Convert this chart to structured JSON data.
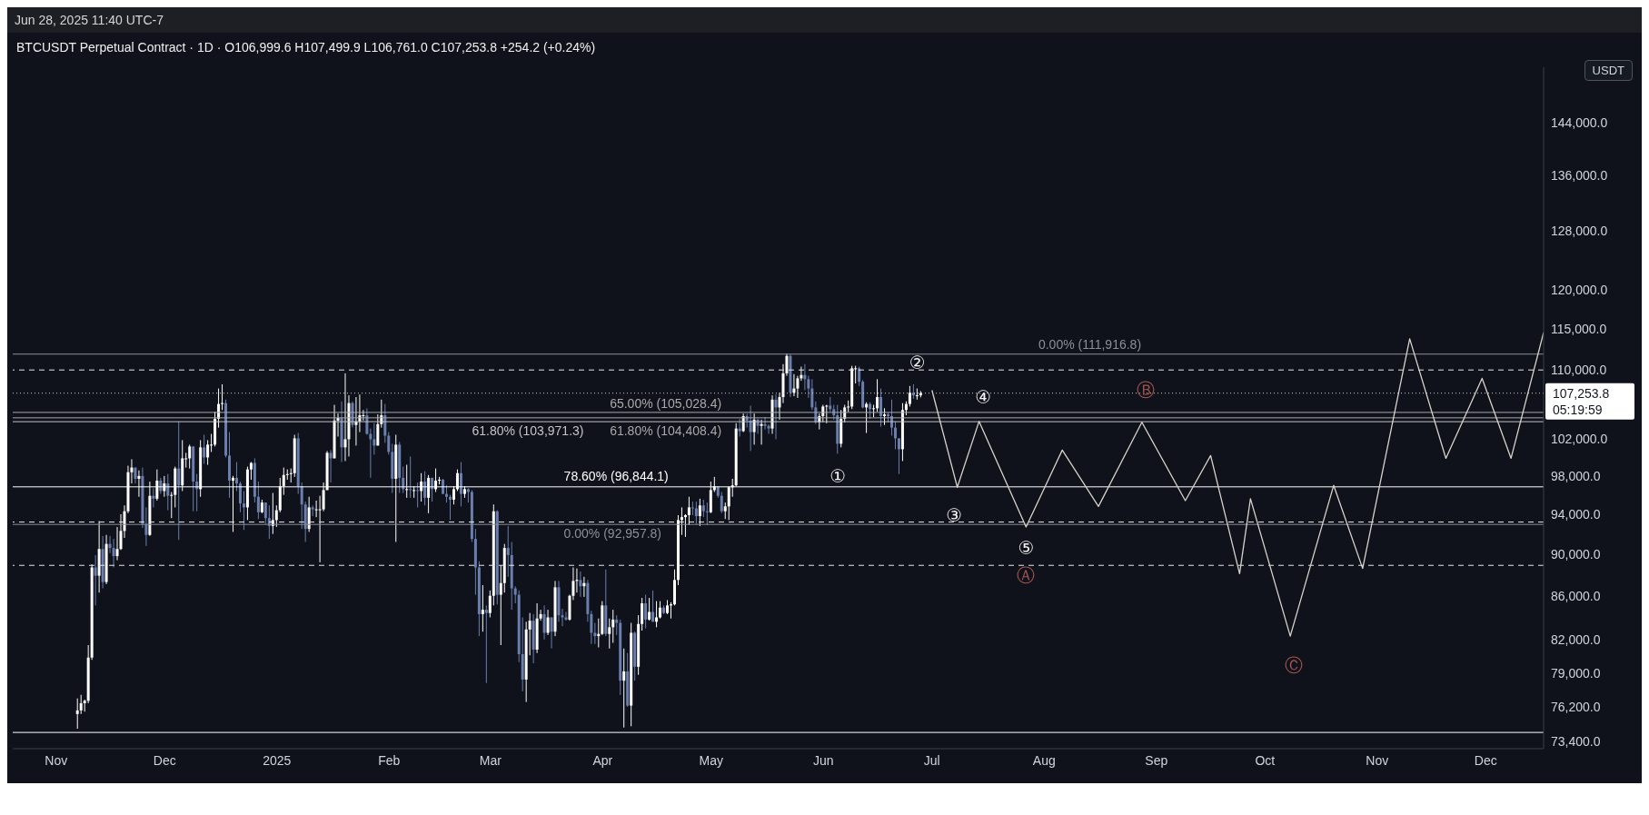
{
  "chart_data": {
    "type": "candlestick",
    "title": "BTCUSDT Perpetual Contract · 1D · O106,999.6 H107,499.9 L106,761.0 C107,253.8 +254.2 (+0.24%)",
    "subtitle": "Jun 28, 2025 11:40 UTC-7",
    "ylabel": "USDT",
    "log": true,
    "colors": [
      "#ffffff",
      "#ffffff",
      "#ffffff",
      "#ffffff",
      "#ffffff",
      "#6a7fae",
      "#ffffff",
      "#6a7fae",
      "#ffffff",
      "#6a7fae",
      "#6a7fae",
      "#ffffff",
      "#ffffff",
      "#ffffff",
      "#ffffff",
      "#ffffff",
      "#6a7fae",
      "#ffffff",
      "#6a7fae",
      "#6a7fae",
      "#ffffff",
      "#6a7fae",
      "#ffffff",
      "#6a7fae",
      "#ffffff",
      "#6a7fae",
      "#ffffff",
      "#ffffff",
      "#6a7fae",
      "#ffffff",
      "#ffffff",
      "#ffffff",
      "#6a7fae",
      "#6a7fae",
      "#ffffff",
      "#6a7fae",
      "#ffffff",
      "#ffffff",
      "#ffffff",
      "#ffffff",
      "#ffffff",
      "#6a7fae",
      "#6a7fae",
      "#ffffff",
      "#6a7fae",
      "#6a7fae",
      "#6a7fae",
      "#ffffff",
      "#ffffff",
      "#6a7fae",
      "#6a7fae",
      "#ffffff",
      "#6a7fae",
      "#6a7fae",
      "#ffffff",
      "#ffffff",
      "#ffffff",
      "#ffffff",
      "#ffffff",
      "#ffffff",
      "#ffffff",
      "#6a7fae",
      "#6a7fae",
      "#6a7fae",
      "#ffffff",
      "#6a7fae",
      "#ffffff",
      "#ffffff",
      "#ffffff",
      "#ffffff",
      "#6a7fae",
      "#ffffff",
      "#ffffff",
      "#6a7fae",
      "#ffffff",
      "#ffffff",
      "#6a7fae",
      "#ffffff",
      "#ffffff",
      "#ffffff",
      "#6a7fae",
      "#6a7fae",
      "#6a7fae",
      "#ffffff",
      "#ffffff",
      "#6a7fae",
      "#6a7fae",
      "#6a7fae",
      "#ffffff",
      "#6a7fae",
      "#6a7fae",
      "#ffffff",
      "#6a7fae",
      "#ffffff",
      "#6a7fae",
      "#ffffff",
      "#6a7fae",
      "#ffffff",
      "#6a7fae",
      "#ffffff",
      "#ffffff",
      "#6a7fae",
      "#6a7fae",
      "#6a7fae",
      "#ffffff",
      "#ffffff",
      "#6a7fae",
      "#ffffff",
      "#6a7fae",
      "#6a7fae",
      "#6a7fae",
      "#6a7fae",
      "#ffffff",
      "#6a7fae",
      "#ffffff",
      "#ffffff",
      "#6a7fae",
      "#ffffff",
      "#ffffff",
      "#6a7fae",
      "#6a7fae",
      "#6a7fae",
      "#6a7fae",
      "#6a7fae",
      "#ffffff",
      "#ffffff",
      "#6a7fae",
      "#ffffff",
      "#ffffff",
      "#6a7fae",
      "#ffffff",
      "#6a7fae",
      "#ffffff",
      "#6a7fae",
      "#6a7fae",
      "#6a7fae",
      "#ffffff",
      "#ffffff",
      "#ffffff",
      "#6a7fae",
      "#ffffff",
      "#6a7fae",
      "#6a7fae",
      "#6a7fae",
      "#ffffff",
      "#ffffff",
      "#6a7fae",
      "#ffffff",
      "#ffffff",
      "#6a7fae",
      "#6a7fae",
      "#ffffff",
      "#6a7fae",
      "#ffffff",
      "#6a7fae",
      "#ffffff",
      "#ffffff",
      "#6a7fae",
      "#ffffff",
      "#6a7fae",
      "#ffffff",
      "#ffffff",
      "#6a7fae",
      "#ffffff",
      "#ffffff",
      "#ffffff",
      "#ffffff",
      "#ffffff",
      "#ffffff",
      "#ffffff",
      "#6a7fae",
      "#6a7fae",
      "#ffffff",
      "#6a7fae",
      "#6a7fae",
      "#ffffff",
      "#ffffff",
      "#6a7fae",
      "#6a7fae",
      "#ffffff",
      "#ffffff",
      "#ffffff",
      "#ffffff",
      "#6a7fae",
      "#ffffff",
      "#6a7fae",
      "#6a7fae",
      "#ffffff",
      "#6a7fae",
      "#ffffff",
      "#6a7fae",
      "#6a7fae",
      "#ffffff",
      "#6a7fae",
      "#ffffff",
      "#ffffff",
      "#ffffff",
      "#6a7fae",
      "#ffffff",
      "#ffffff",
      "#ffffff",
      "#6a7fae",
      "#6a7fae",
      "#6a7fae",
      "#6a7fae",
      "#ffffff",
      "#ffffff",
      "#ffffff",
      "#6a7fae",
      "#6a7fae",
      "#6a7fae",
      "#ffffff",
      "#ffffff",
      "#ffffff",
      "#ffffff",
      "#ffffff",
      "#6a7fae",
      "#6a7fae",
      "#ffffff",
      "#6a7fae",
      "#ffffff",
      "#ffffff",
      "#6a7fae",
      "#ffffff",
      "#6a7fae",
      "#6a7fae",
      "#6a7fae",
      "#6a7fae",
      "#ffffff",
      "#ffffff",
      "#ffffff",
      "#6a7fae",
      "#ffffff",
      "#ffffff"
    ],
    "xlim": [
      "2024-10-20",
      "2025-12-17"
    ],
    "xticks": [
      {
        "value": "2024-11-01",
        "label": "Nov"
      },
      {
        "value": "2024-12-01",
        "label": "Dec"
      },
      {
        "value": "2025-01-01",
        "label": "2025"
      },
      {
        "value": "2025-02-01",
        "label": "Feb"
      },
      {
        "value": "2025-03-01",
        "label": "Mar"
      },
      {
        "value": "2025-04-01",
        "label": "Apr"
      },
      {
        "value": "2025-05-01",
        "label": "May"
      },
      {
        "value": "2025-06-01",
        "label": "Jun"
      },
      {
        "value": "2025-07-01",
        "label": "Jul"
      },
      {
        "value": "2025-08-01",
        "label": "Aug"
      },
      {
        "value": "2025-09-01",
        "label": "Sep"
      },
      {
        "value": "2025-10-01",
        "label": "Oct"
      },
      {
        "value": "2025-11-01",
        "label": "Nov"
      },
      {
        "value": "2025-12-01",
        "label": "Dec"
      }
    ],
    "ylim": [
      72800,
      153000
    ],
    "yticks": [
      {
        "value": 73400,
        "label": "73,400.0"
      },
      {
        "value": 76200,
        "label": "76,200.0"
      },
      {
        "value": 79000,
        "label": "79,000.0"
      },
      {
        "value": 82000,
        "label": "82,000.0"
      },
      {
        "value": 86000,
        "label": "86,000.0"
      },
      {
        "value": 90000,
        "label": "90,000.0"
      },
      {
        "value": 94000,
        "label": "94,000.0"
      },
      {
        "value": 98000,
        "label": "98,000.0"
      },
      {
        "value": 102000,
        "label": "102,000.0"
      },
      {
        "value": 110000,
        "label": "110,000.0"
      },
      {
        "value": 115000,
        "label": "115,000.0"
      },
      {
        "value": 120000,
        "label": "120,000.0"
      },
      {
        "value": 128000,
        "label": "128,000.0"
      },
      {
        "value": 136000,
        "label": "136,000.0"
      },
      {
        "value": 144000,
        "label": "144,000.0"
      }
    ],
    "x": [
      "2024-11-07",
      "2024-11-08",
      "2024-11-09",
      "2024-11-10",
      "2024-11-11",
      "2024-11-12",
      "2024-11-13",
      "2024-11-14",
      "2024-11-15",
      "2024-11-16",
      "2024-11-17",
      "2024-11-18",
      "2024-11-19",
      "2024-11-20",
      "2024-11-21",
      "2024-11-22",
      "2024-11-23",
      "2024-11-24",
      "2024-11-25",
      "2024-11-26",
      "2024-11-27",
      "2024-11-28",
      "2024-11-29",
      "2024-11-30",
      "2024-12-01",
      "2024-12-02",
      "2024-12-03",
      "2024-12-04",
      "2024-12-05",
      "2024-12-06",
      "2024-12-07",
      "2024-12-08",
      "2024-12-09",
      "2024-12-10",
      "2024-12-11",
      "2024-12-12",
      "2024-12-13",
      "2024-12-14",
      "2024-12-15",
      "2024-12-16",
      "2024-12-17",
      "2024-12-18",
      "2024-12-19",
      "2024-12-20",
      "2024-12-21",
      "2024-12-22",
      "2024-12-23",
      "2024-12-24",
      "2024-12-25",
      "2024-12-26",
      "2024-12-27",
      "2024-12-28",
      "2024-12-29",
      "2024-12-30",
      "2024-12-31",
      "2025-01-01",
      "2025-01-02",
      "2025-01-03",
      "2025-01-04",
      "2025-01-05",
      "2025-01-06",
      "2025-01-07",
      "2025-01-08",
      "2025-01-09",
      "2025-01-10",
      "2025-01-11",
      "2025-01-12",
      "2025-01-13",
      "2025-01-14",
      "2025-01-15",
      "2025-01-16",
      "2025-01-17",
      "2025-01-18",
      "2025-01-19",
      "2025-01-20",
      "2025-01-21",
      "2025-01-22",
      "2025-01-23",
      "2025-01-24",
      "2025-01-25",
      "2025-01-26",
      "2025-01-27",
      "2025-01-28",
      "2025-01-29",
      "2025-01-30",
      "2025-01-31",
      "2025-02-01",
      "2025-02-02",
      "2025-02-03",
      "2025-02-04",
      "2025-02-05",
      "2025-02-06",
      "2025-02-07",
      "2025-02-08",
      "2025-02-09",
      "2025-02-10",
      "2025-02-11",
      "2025-02-12",
      "2025-02-13",
      "2025-02-14",
      "2025-02-15",
      "2025-02-16",
      "2025-02-17",
      "2025-02-18",
      "2025-02-19",
      "2025-02-20",
      "2025-02-21",
      "2025-02-22",
      "2025-02-23",
      "2025-02-24",
      "2025-02-25",
      "2025-02-26",
      "2025-02-27",
      "2025-02-28",
      "2025-03-01",
      "2025-03-02",
      "2025-03-03",
      "2025-03-04",
      "2025-03-05",
      "2025-03-06",
      "2025-03-07",
      "2025-03-08",
      "2025-03-09",
      "2025-03-10",
      "2025-03-11",
      "2025-03-12",
      "2025-03-13",
      "2025-03-14",
      "2025-03-15",
      "2025-03-16",
      "2025-03-17",
      "2025-03-18",
      "2025-03-19",
      "2025-03-20",
      "2025-03-21",
      "2025-03-22",
      "2025-03-23",
      "2025-03-24",
      "2025-03-25",
      "2025-03-26",
      "2025-03-27",
      "2025-03-28",
      "2025-03-29",
      "2025-03-30",
      "2025-03-31",
      "2025-04-01",
      "2025-04-02",
      "2025-04-03",
      "2025-04-04",
      "2025-04-05",
      "2025-04-06",
      "2025-04-07",
      "2025-04-08",
      "2025-04-09",
      "2025-04-10",
      "2025-04-11",
      "2025-04-12",
      "2025-04-13",
      "2025-04-14",
      "2025-04-15",
      "2025-04-16",
      "2025-04-17",
      "2025-04-18",
      "2025-04-19",
      "2025-04-20",
      "2025-04-21",
      "2025-04-22",
      "2025-04-23",
      "2025-04-24",
      "2025-04-25",
      "2025-04-26",
      "2025-04-27",
      "2025-04-28",
      "2025-04-29",
      "2025-04-30",
      "2025-05-01",
      "2025-05-02",
      "2025-05-03",
      "2025-05-04",
      "2025-05-05",
      "2025-05-06",
      "2025-05-07",
      "2025-05-08",
      "2025-05-09",
      "2025-05-10",
      "2025-05-11",
      "2025-05-12",
      "2025-05-13",
      "2025-05-14",
      "2025-05-15",
      "2025-05-16",
      "2025-05-17",
      "2025-05-18",
      "2025-05-19",
      "2025-05-20",
      "2025-05-21",
      "2025-05-22",
      "2025-05-23",
      "2025-05-24",
      "2025-05-25",
      "2025-05-26",
      "2025-05-27",
      "2025-05-28",
      "2025-05-29",
      "2025-05-30",
      "2025-05-31",
      "2025-06-01",
      "2025-06-02",
      "2025-06-03",
      "2025-06-04",
      "2025-06-05",
      "2025-06-06",
      "2025-06-07",
      "2025-06-08",
      "2025-06-09",
      "2025-06-10",
      "2025-06-11",
      "2025-06-12",
      "2025-06-13",
      "2025-06-14",
      "2025-06-15",
      "2025-06-16",
      "2025-06-17",
      "2025-06-18",
      "2025-06-19",
      "2025-06-20",
      "2025-06-21",
      "2025-06-22",
      "2025-06-23",
      "2025-06-24",
      "2025-06-25",
      "2025-06-26",
      "2025-06-27",
      "2025-06-28"
    ],
    "ohlc": [
      [
        75600,
        76900,
        74400,
        75900
      ],
      [
        75900,
        77200,
        75600,
        76500
      ],
      [
        76500,
        76800,
        75800,
        76700
      ],
      [
        76700,
        81500,
        76500,
        80400
      ],
      [
        80400,
        89000,
        80200,
        88700
      ],
      [
        88700,
        89900,
        85100,
        87900
      ],
      [
        87900,
        93300,
        86300,
        90500
      ],
      [
        90500,
        91800,
        86700,
        87300
      ],
      [
        87300,
        91900,
        87100,
        91000
      ],
      [
        91000,
        91800,
        90100,
        90600
      ],
      [
        90600,
        91500,
        88700,
        89800
      ],
      [
        89800,
        92700,
        89400,
        90500
      ],
      [
        90500,
        94000,
        90400,
        92300
      ],
      [
        92300,
        94900,
        91600,
        94300
      ],
      [
        94300,
        99100,
        94100,
        98400
      ],
      [
        98400,
        99800,
        97200,
        98900
      ],
      [
        98900,
        98900,
        97200,
        97700
      ],
      [
        97700,
        98600,
        95800,
        98000
      ],
      [
        98000,
        98900,
        92600,
        93000
      ],
      [
        93000,
        94700,
        90800,
        91900
      ],
      [
        91900,
        97400,
        91800,
        95900
      ],
      [
        95900,
        96700,
        94700,
        95600
      ],
      [
        95600,
        98700,
        95400,
        97500
      ],
      [
        97500,
        97800,
        96100,
        96400
      ],
      [
        96400,
        98000,
        95800,
        97200
      ],
      [
        97200,
        98200,
        94400,
        95900
      ],
      [
        95900,
        96300,
        93600,
        96000
      ],
      [
        96000,
        99000,
        94700,
        98800
      ],
      [
        98800,
        104000,
        91400,
        97000
      ],
      [
        97000,
        101900,
        96400,
        99900
      ],
      [
        99900,
        100500,
        98900,
        99900
      ],
      [
        99900,
        101400,
        98800,
        101200
      ],
      [
        101200,
        101200,
        94300,
        97400
      ],
      [
        97400,
        98200,
        94300,
        96600
      ],
      [
        96600,
        101900,
        95800,
        101100
      ],
      [
        101100,
        102500,
        99300,
        100000
      ],
      [
        100000,
        101900,
        99200,
        101400
      ],
      [
        101400,
        102600,
        100600,
        101400
      ],
      [
        101400,
        105100,
        101200,
        104300
      ],
      [
        104300,
        107800,
        103300,
        106000
      ],
      [
        106000,
        108300,
        105300,
        106100
      ],
      [
        106100,
        106500,
        100000,
        100200
      ],
      [
        100200,
        102800,
        95700,
        97500
      ],
      [
        97500,
        98000,
        92200,
        97800
      ],
      [
        97800,
        99500,
        96400,
        97200
      ],
      [
        97200,
        97400,
        94200,
        95100
      ],
      [
        95100,
        96400,
        92400,
        94700
      ],
      [
        94700,
        99000,
        93400,
        98700
      ],
      [
        98700,
        99500,
        97600,
        99400
      ],
      [
        99400,
        99900,
        95200,
        95800
      ],
      [
        95800,
        97400,
        93500,
        94200
      ],
      [
        94200,
        95500,
        94100,
        95200
      ],
      [
        95200,
        95200,
        93000,
        93600
      ],
      [
        93600,
        94900,
        91500,
        92800
      ],
      [
        92800,
        96200,
        92000,
        93400
      ],
      [
        93400,
        94900,
        92700,
        94400
      ],
      [
        94400,
        97800,
        94200,
        96900
      ],
      [
        96900,
        98900,
        96000,
        98100
      ],
      [
        98100,
        98700,
        97600,
        98200
      ],
      [
        98200,
        98800,
        97300,
        98300
      ],
      [
        98300,
        102500,
        97900,
        102100
      ],
      [
        102100,
        102700,
        96100,
        96900
      ],
      [
        96900,
        97300,
        92500,
        95000
      ],
      [
        95000,
        95300,
        91200,
        92500
      ],
      [
        92500,
        95800,
        92200,
        94700
      ],
      [
        94700,
        94900,
        93800,
        94500
      ],
      [
        94500,
        95400,
        93700,
        94500
      ],
      [
        94500,
        95900,
        89200,
        94500
      ],
      [
        94500,
        97300,
        94300,
        96500
      ],
      [
        96500,
        100700,
        96500,
        100500
      ],
      [
        100500,
        100800,
        97300,
        99900
      ],
      [
        99900,
        105900,
        99900,
        104100
      ],
      [
        104100,
        104900,
        102300,
        104400
      ],
      [
        104400,
        106300,
        99500,
        101100
      ],
      [
        101100,
        109600,
        99600,
        102000
      ],
      [
        102000,
        107000,
        100100,
        106100
      ],
      [
        106100,
        106300,
        103300,
        103600
      ],
      [
        103600,
        106800,
        101300,
        104000
      ],
      [
        104000,
        107100,
        102800,
        104700
      ],
      [
        104700,
        105300,
        104100,
        104700
      ],
      [
        104700,
        105500,
        102500,
        102600
      ],
      [
        102600,
        103200,
        97800,
        102000
      ],
      [
        102000,
        103800,
        100300,
        101300
      ],
      [
        101300,
        104800,
        101300,
        103700
      ],
      [
        103700,
        106500,
        103300,
        104700
      ],
      [
        104700,
        106000,
        101600,
        102400
      ],
      [
        102400,
        102800,
        100300,
        100600
      ],
      [
        100600,
        101500,
        96200,
        97700
      ],
      [
        97700,
        102500,
        91200,
        101400
      ],
      [
        101400,
        101700,
        96200,
        97800
      ],
      [
        97800,
        99000,
        96200,
        96600
      ],
      [
        96600,
        99200,
        95700,
        96600
      ],
      [
        96600,
        100100,
        95700,
        96500
      ],
      [
        96500,
        96900,
        95700,
        96500
      ],
      [
        96500,
        97300,
        94700,
        96400
      ],
      [
        96400,
        98300,
        95300,
        97400
      ],
      [
        97400,
        98500,
        94900,
        95700
      ],
      [
        95700,
        98100,
        94100,
        97800
      ],
      [
        97800,
        97800,
        95300,
        96600
      ],
      [
        96600,
        98800,
        96300,
        97500
      ],
      [
        97500,
        97900,
        97100,
        97600
      ],
      [
        97600,
        97700,
        96100,
        96100
      ],
      [
        96100,
        97000,
        95200,
        95800
      ],
      [
        95800,
        96000,
        93400,
        95500
      ],
      [
        95500,
        96900,
        95000,
        96600
      ],
      [
        96600,
        98700,
        96400,
        98300
      ],
      [
        98300,
        99500,
        94800,
        96100
      ],
      [
        96100,
        96900,
        95700,
        96600
      ],
      [
        96600,
        96700,
        95200,
        96300
      ],
      [
        96300,
        96500,
        91200,
        91500
      ],
      [
        91500,
        92500,
        86100,
        88700
      ],
      [
        88700,
        89300,
        82300,
        84300
      ],
      [
        84300,
        87000,
        82700,
        84700
      ],
      [
        84700,
        85100,
        78200,
        84400
      ],
      [
        84400,
        86500,
        84000,
        86000
      ],
      [
        86000,
        95000,
        85100,
        94300
      ],
      [
        94300,
        94400,
        85200,
        86100
      ],
      [
        86100,
        88900,
        81500,
        87200
      ],
      [
        87200,
        91000,
        86300,
        90600
      ],
      [
        90600,
        92800,
        87800,
        89900
      ],
      [
        89900,
        91200,
        84700,
        86700
      ],
      [
        86700,
        86900,
        85300,
        86100
      ],
      [
        86100,
        86500,
        80000,
        80700
      ],
      [
        80700,
        84000,
        77500,
        78500
      ],
      [
        78500,
        83600,
        76600,
        82900
      ],
      [
        82900,
        84400,
        80600,
        83700
      ],
      [
        83700,
        84300,
        79900,
        81100
      ],
      [
        81100,
        85300,
        80800,
        83900
      ],
      [
        83900,
        84700,
        83700,
        84300
      ],
      [
        84300,
        85100,
        82000,
        82600
      ],
      [
        82600,
        84700,
        82400,
        84000
      ],
      [
        84000,
        84000,
        81200,
        82700
      ],
      [
        82700,
        87400,
        82300,
        86800
      ],
      [
        86800,
        87400,
        83600,
        84200
      ],
      [
        84200,
        84800,
        83200,
        84000
      ],
      [
        84000,
        84500,
        83700,
        83800
      ],
      [
        83800,
        86100,
        83700,
        86000
      ],
      [
        86000,
        88700,
        85600,
        87400
      ],
      [
        87400,
        88600,
        86300,
        87500
      ],
      [
        87500,
        88300,
        85900,
        86900
      ],
      [
        86900,
        87800,
        85900,
        87200
      ],
      [
        87200,
        87500,
        83600,
        84300
      ],
      [
        84300,
        84600,
        81600,
        82600
      ],
      [
        82600,
        83500,
        81600,
        82300
      ],
      [
        82300,
        83900,
        81300,
        82500
      ],
      [
        82500,
        85500,
        82400,
        85100
      ],
      [
        85100,
        88500,
        82300,
        82500
      ],
      [
        82500,
        83900,
        81200,
        83100
      ],
      [
        83100,
        84700,
        81700,
        83800
      ],
      [
        83800,
        84200,
        82400,
        83500
      ],
      [
        83500,
        83800,
        77200,
        78400
      ],
      [
        78400,
        81200,
        74500,
        79200
      ],
      [
        79200,
        80800,
        76200,
        76300
      ],
      [
        76300,
        83500,
        74600,
        82600
      ],
      [
        82600,
        82700,
        78400,
        79600
      ],
      [
        79600,
        84200,
        78900,
        83400
      ],
      [
        83400,
        85800,
        82800,
        85300
      ],
      [
        85300,
        86100,
        83000,
        83800
      ],
      [
        83800,
        85800,
        83700,
        84500
      ],
      [
        84500,
        86500,
        83600,
        83600
      ],
      [
        83600,
        85500,
        83100,
        84000
      ],
      [
        84000,
        85500,
        83900,
        84900
      ],
      [
        84900,
        85100,
        84300,
        84400
      ],
      [
        84400,
        85600,
        84300,
        85100
      ],
      [
        85100,
        85400,
        83900,
        85200
      ],
      [
        85200,
        88500,
        85100,
        87500
      ],
      [
        87500,
        93900,
        87000,
        93400
      ],
      [
        93400,
        94700,
        91900,
        93700
      ],
      [
        93700,
        94000,
        91700,
        93900
      ],
      [
        93900,
        95800,
        92900,
        94700
      ],
      [
        94700,
        95300,
        93900,
        94600
      ],
      [
        94600,
        95300,
        93000,
        93800
      ],
      [
        93800,
        95600,
        92800,
        94900
      ],
      [
        94900,
        95500,
        93700,
        94300
      ],
      [
        94300,
        95200,
        92900,
        94200
      ],
      [
        94200,
        97400,
        94100,
        96500
      ],
      [
        96500,
        97900,
        96300,
        96900
      ],
      [
        96900,
        96900,
        95700,
        95900
      ],
      [
        95900,
        96300,
        94100,
        94300
      ],
      [
        94300,
        95200,
        93500,
        94800
      ],
      [
        94800,
        96900,
        93400,
        96800
      ],
      [
        96800,
        97700,
        95800,
        97000
      ],
      [
        97000,
        103800,
        96900,
        103200
      ],
      [
        103200,
        104300,
        102300,
        102900
      ],
      [
        102900,
        104900,
        102800,
        104600
      ],
      [
        104600,
        104900,
        103300,
        104100
      ],
      [
        104100,
        105800,
        100700,
        102800
      ],
      [
        102800,
        104900,
        101400,
        104200
      ],
      [
        104200,
        104300,
        102600,
        103500
      ],
      [
        103500,
        104200,
        101400,
        103700
      ],
      [
        103700,
        104500,
        103100,
        103500
      ],
      [
        103500,
        103700,
        102600,
        103200
      ],
      [
        103200,
        107000,
        102600,
        106500
      ],
      [
        106500,
        107100,
        102000,
        105600
      ],
      [
        105600,
        107300,
        104200,
        106800
      ],
      [
        106800,
        110700,
        106100,
        109600
      ],
      [
        109600,
        112000,
        109300,
        111700
      ],
      [
        111700,
        111900,
        106800,
        107300
      ],
      [
        107300,
        109500,
        106900,
        107800
      ],
      [
        107800,
        109300,
        106700,
        109000
      ],
      [
        109000,
        110400,
        108700,
        109400
      ],
      [
        109400,
        110700,
        107600,
        108900
      ],
      [
        108900,
        109300,
        106700,
        107800
      ],
      [
        107800,
        108900,
        105300,
        105600
      ],
      [
        105600,
        106300,
        103700,
        103900
      ],
      [
        103900,
        104900,
        103100,
        104600
      ],
      [
        104600,
        105900,
        103900,
        105700
      ],
      [
        105700,
        105900,
        103800,
        105800
      ],
      [
        105800,
        106800,
        105100,
        105400
      ],
      [
        105400,
        105900,
        104200,
        104700
      ],
      [
        104700,
        105900,
        100400,
        101500
      ],
      [
        101500,
        105300,
        101100,
        104300
      ],
      [
        104300,
        105900,
        103900,
        105600
      ],
      [
        105600,
        106400,
        105100,
        105700
      ],
      [
        105700,
        110500,
        105400,
        110200
      ],
      [
        110200,
        110500,
        108400,
        110200
      ],
      [
        110200,
        110400,
        108100,
        108600
      ],
      [
        108600,
        108800,
        105500,
        105600
      ],
      [
        105600,
        106200,
        102700,
        106000
      ],
      [
        106000,
        106200,
        104300,
        105400
      ],
      [
        105400,
        105900,
        104500,
        105500
      ],
      [
        105500,
        108900,
        105100,
        106800
      ],
      [
        106800,
        107800,
        103400,
        104600
      ],
      [
        104600,
        105500,
        103600,
        104800
      ],
      [
        104800,
        105000,
        103900,
        104600
      ],
      [
        104600,
        106500,
        102400,
        103300
      ],
      [
        103300,
        104000,
        100900,
        102100
      ],
      [
        102100,
        102100,
        98200,
        100900
      ],
      [
        100900,
        106100,
        99600,
        105300
      ],
      [
        105300,
        106300,
        104700,
        106000
      ],
      [
        106000,
        108100,
        105700,
        107300
      ],
      [
        107300,
        108300,
        106600,
        107000
      ],
      [
        107000,
        107800,
        106500,
        107000
      ],
      [
        106999.6,
        107499.9,
        106761,
        107253.8
      ]
    ],
    "series": [
      {
        "type": "line",
        "color": "#d8d3cb",
        "x": [
          "2025-07-01",
          "2025-07-08",
          "2025-07-14",
          "2025-07-27",
          "2025-08-06",
          "2025-08-16",
          "2025-08-28",
          "2025-09-09",
          "2025-09-16",
          "2025-09-24",
          "2025-09-27",
          "2025-10-08",
          "2025-10-20",
          "2025-10-28",
          "2025-11-10",
          "2025-11-20",
          "2025-11-30",
          "2025-12-08",
          "2025-12-17"
        ],
        "values": [
          107600,
          96800,
          104000,
          92700,
          100800,
          94800,
          103900,
          95400,
          100200,
          88100,
          95600,
          82300,
          97000,
          88600,
          113800,
          99900,
          109000,
          99900,
          114600
        ]
      }
    ],
    "ref_lines": [
      {
        "axis": "y",
        "value": 111916.8,
        "label": "0.00% (111,916.8)",
        "color": "#8c8f96",
        "line_style": "solid"
      },
      {
        "axis": "y",
        "value": 110000,
        "color": "#e6e6e6",
        "line_style": "dashed"
      },
      {
        "axis": "y",
        "value": 107253.8,
        "label": "107,253.8",
        "color": "#d0d0d0",
        "line_style": "dotted"
      },
      {
        "axis": "y",
        "value": 105028.4,
        "label": "65.00% (105,028.4)",
        "color": "#a9a9a9",
        "line_style": "solid"
      },
      {
        "axis": "y",
        "value": 104408.4,
        "label": "61.80% (104,408.4)",
        "color": "#a9a9a9",
        "line_style": "solid"
      },
      {
        "axis": "y",
        "value": 103971.3,
        "label": "61.80% (103,971.3)",
        "color": "#c4c4c4",
        "line_style": "solid"
      },
      {
        "axis": "y",
        "value": 96844.1,
        "label": "78.60% (96,844.1)",
        "color": "#ffffff",
        "line_style": "solid"
      },
      {
        "axis": "y",
        "value": 93200,
        "color": "#e6e6e6",
        "line_style": "dashed"
      },
      {
        "axis": "y",
        "value": 92957.8,
        "label": "0.00% (92,957.8)",
        "color": "#8c8f96",
        "line_style": "solid"
      },
      {
        "axis": "y",
        "value": 88900,
        "color": "#e6e6e6",
        "line_style": "dashed"
      },
      {
        "axis": "y",
        "value": 74100,
        "color": "#ffffff",
        "line_style": "solid"
      }
    ],
    "annotations": [
      "05:19:59",
      "①",
      "②",
      "③",
      "④",
      "⑤",
      "Ⓐ",
      "Ⓑ",
      "Ⓒ"
    ]
  }
}
